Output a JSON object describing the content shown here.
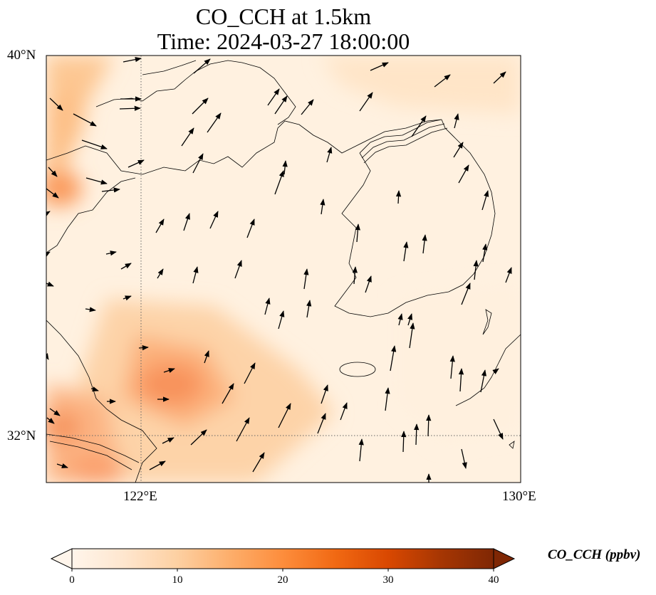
{
  "title_line1": "CO_CCH at 1.5km",
  "title_line2": "Time: 2024-03-27 18:00:00",
  "axes": {
    "lat_ticks": [
      "40°N",
      "32°N"
    ],
    "lon_ticks": [
      "122°E",
      "130°E"
    ],
    "lon_range": [
      120,
      130
    ],
    "lat_range": [
      31,
      40
    ]
  },
  "colorbar": {
    "label": "CO_CCH (ppbv)",
    "ticks": [
      "0",
      "10",
      "20",
      "30",
      "40"
    ],
    "range": [
      0,
      40
    ],
    "extend": "both",
    "colormap": [
      "#fff5eb",
      "#fee6ce",
      "#fdd0a2",
      "#fdae6b",
      "#fd8d3c",
      "#f16913",
      "#d94801",
      "#a63603",
      "#7f2704"
    ]
  },
  "gridlines": "dotted",
  "field_description": "CO concentration shaded; wind vectors as arrows"
}
